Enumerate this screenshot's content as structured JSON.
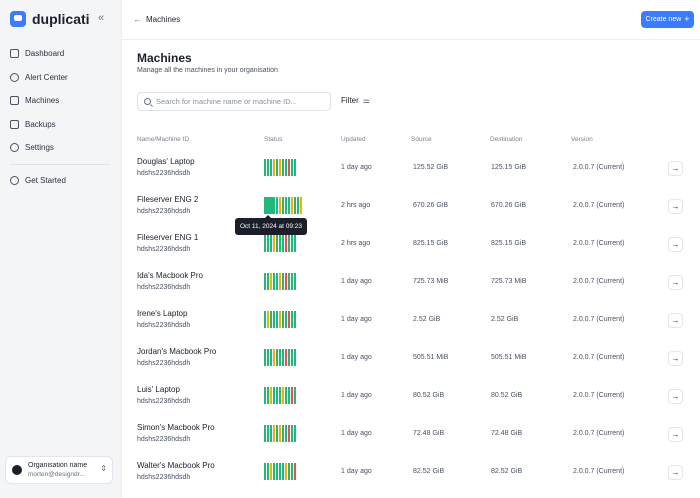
{
  "brand": {
    "name": "duplicati"
  },
  "sidebar": {
    "items": [
      {
        "label": "Dashboard",
        "icon": "dashboard-icon"
      },
      {
        "label": "Alert Center",
        "icon": "alert-icon"
      },
      {
        "label": "Machines",
        "icon": "machines-icon"
      },
      {
        "label": "Backups",
        "icon": "backups-icon"
      },
      {
        "label": "Settings",
        "icon": "gear-icon"
      }
    ],
    "get_started": "Get Started",
    "org": {
      "name": "Organisation name",
      "email": "morten@designdr..."
    }
  },
  "topbar": {
    "breadcrumb": "Machines",
    "create_label": "Create new"
  },
  "page": {
    "title": "Machines",
    "subtitle": "Manage all the machines in your organisation"
  },
  "search": {
    "placeholder": "Search for machine name or machine ID..."
  },
  "filter_label": "Filter",
  "table": {
    "headers": [
      "Name/Machine ID",
      "Status",
      "Updated",
      "Source",
      "Destination",
      "Version"
    ],
    "rows": [
      {
        "name": "Douglas' Laptop",
        "id": "hdshs2236hdsdh",
        "updated": "1 day ago",
        "source": "125.52 GiB",
        "destination": "125.15 GiB",
        "version": "2.0.0.7 (Current)"
      },
      {
        "name": "Fileserver ENG 2",
        "id": "hdshs2236hdsdh",
        "updated": "2 hrs ago",
        "source": "670.26 GiB",
        "destination": "670.26 GiB",
        "version": "2.0.0.7 (Current)"
      },
      {
        "name": "Fileserver ENG 1",
        "id": "hdshs2236hdsdh",
        "updated": "2 hrs ago",
        "source": "825.15 GiB",
        "destination": "825.15 GiB",
        "version": "2.0.0.7 (Current)"
      },
      {
        "name": "Ida's Macbook Pro",
        "id": "hdshs2236hdsdh",
        "updated": "1 day ago",
        "source": "725.73 MiB",
        "destination": "725.73 MiB",
        "version": "2.0.0.7 (Current)"
      },
      {
        "name": "Irene's Laptop",
        "id": "hdshs2236hdsdh",
        "updated": "1 day ago",
        "source": "2.52 GiB",
        "destination": "2.52 GiB",
        "version": "2.0.0.7 (Current)"
      },
      {
        "name": "Jordan's Macbook Pro",
        "id": "hdshs2236hdsdh",
        "updated": "1 day ago",
        "source": "505.51 MiB",
        "destination": "505.51 MiB",
        "version": "2.0.0.7 (Current)"
      },
      {
        "name": "Luis' Laptop",
        "id": "hdshs2236hdsdh",
        "updated": "1 day ago",
        "source": "80.52 GiB",
        "destination": "80.52 GiB",
        "version": "2.0.0.7 (Current)"
      },
      {
        "name": "Simon's Macbook Pro",
        "id": "hdshs2236hdsdh",
        "updated": "1 day ago",
        "source": "72.48 GiB",
        "destination": "72.48 GiB",
        "version": "2.0.0.7 (Current)"
      },
      {
        "name": "Walter's Macbook Pro",
        "id": "hdshs2236hdsdh",
        "updated": "1 day ago",
        "source": "82.52 GiB",
        "destination": "82.52 GiB",
        "version": "2.0.0.7 (Current)"
      }
    ],
    "status_colors": {
      "success": "#22b77c",
      "warning": "#f0b400",
      "error": "#e8514f"
    }
  },
  "tooltip": "Oct 11, 2024 at 09:23"
}
